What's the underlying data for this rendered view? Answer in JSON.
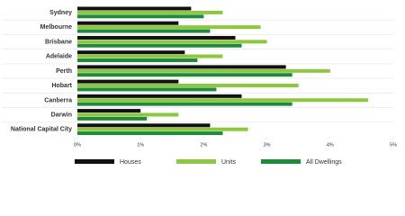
{
  "chart_data": {
    "type": "hbar",
    "categories": [
      "Sydney",
      "Melbourne",
      "Brisbane",
      "Adelaide",
      "Perth",
      "Hobart",
      "Canberra",
      "Darwin",
      "National Capital City"
    ],
    "series": [
      {
        "name": "Houses",
        "color": "#111111",
        "values": [
          1.8,
          1.6,
          2.5,
          1.7,
          3.3,
          1.6,
          2.6,
          1.0,
          2.1
        ]
      },
      {
        "name": "Units",
        "color": "#8dc63f",
        "values": [
          2.3,
          2.9,
          3.0,
          2.3,
          4.0,
          3.5,
          4.6,
          1.6,
          2.7
        ]
      },
      {
        "name": "All Dwellings",
        "color": "#1e8a3a",
        "values": [
          2.0,
          2.1,
          2.6,
          1.9,
          3.4,
          2.2,
          3.4,
          1.1,
          2.3
        ]
      }
    ],
    "xlim": [
      0,
      5
    ],
    "xticks": [
      {
        "value": 0,
        "label": "0%"
      },
      {
        "value": 1,
        "label": "1%"
      },
      {
        "value": 2,
        "label": "2%"
      },
      {
        "value": 3,
        "label": "3%"
      },
      {
        "value": 4,
        "label": "4%"
      },
      {
        "value": 5,
        "label": "5%"
      }
    ]
  }
}
